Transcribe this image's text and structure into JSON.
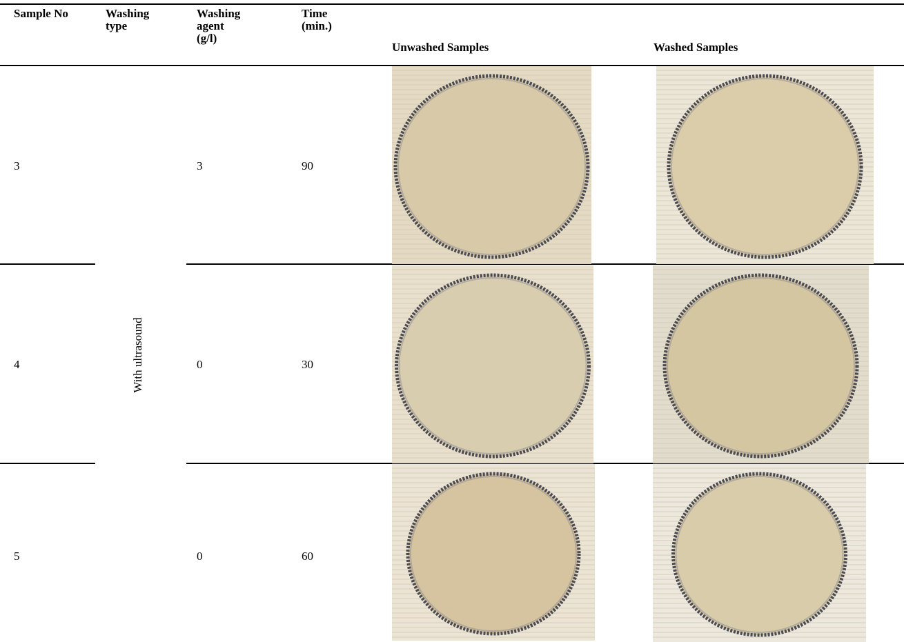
{
  "table": {
    "columns": [
      "Sample No",
      "Washing type",
      "Washing agent (g/l)",
      "Time (min.)",
      "Unwashed Samples",
      "Washed Samples"
    ],
    "washing_type": "With ultrasound",
    "rows": [
      [
        3,
        3,
        90
      ],
      [
        4,
        0,
        30
      ],
      [
        5,
        0,
        60
      ]
    ]
  }
}
